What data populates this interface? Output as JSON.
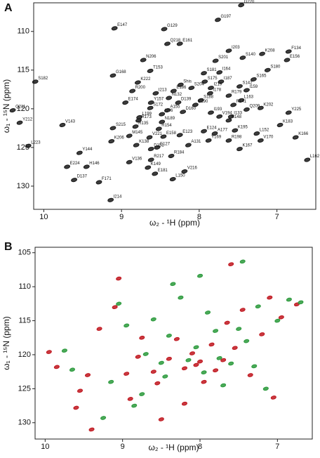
{
  "chart_data": [
    {
      "type": "scatter",
      "title": "A",
      "xlabel": "ω₂ - ¹H (ppm)",
      "ylabel": "ω₁ - ¹⁵N (ppm)",
      "color": "#1a1a1a",
      "xlim": [
        10.13,
        6.5
      ],
      "ylim": [
        106.3,
        133
      ],
      "xticks": [
        10,
        9,
        8,
        7
      ],
      "yticks": [
        110,
        115,
        120,
        125,
        130
      ],
      "point_labels": [
        "G220",
        "G197",
        "E147",
        "G129",
        "Q218",
        "E161",
        "I203",
        "K208",
        "F134",
        "N206",
        "S201",
        "S140",
        "S180",
        "E156",
        "S182",
        "G168",
        "T153",
        "S181",
        "I164",
        "S175",
        "I187",
        "S165",
        "K222",
        "Shis",
        "E186",
        "S204",
        "I219",
        "S142",
        "R200",
        "I213",
        "I178",
        "R179",
        "I159",
        "N132",
        "E174",
        "Y157",
        "D139",
        "S188",
        "L163",
        "Q211",
        "Y212",
        "S172",
        "A155",
        "D160",
        "E190",
        "R141",
        "Q209",
        "K202",
        "Y225",
        "I196",
        "I193",
        "L199",
        "R173",
        "N189",
        "V194",
        "I133",
        "V143",
        "K148",
        "K183",
        "S215",
        "R135",
        "R154",
        "E124",
        "A177",
        "K195",
        "L152",
        "M145",
        "V221",
        "E158",
        "E123",
        "Y169",
        "R198",
        "V170",
        "K166",
        "L223",
        "K206",
        "K138",
        "E127",
        "A131",
        "D151",
        "K167",
        "Y144",
        "R184",
        "V136",
        "R217",
        "L162",
        "E224",
        "H146",
        "K149",
        "V216",
        "E181",
        "L150",
        "D137",
        "F171",
        "I214"
      ],
      "x": [
        7.46,
        7.76,
        9.09,
        8.45,
        8.41,
        8.25,
        7.62,
        7.19,
        6.85,
        8.72,
        7.79,
        7.44,
        7.12,
        6.87,
        10.11,
        9.11,
        8.63,
        7.94,
        7.74,
        7.93,
        7.72,
        7.3,
        8.79,
        8.24,
        8.33,
        8.1,
        7.85,
        7.48,
        8.86,
        8.56,
        7.86,
        7.62,
        7.39,
        8.39,
        8.95,
        8.62,
        8.27,
        7.98,
        7.46,
        10.4,
        10.31,
        8.63,
        8.41,
        8.21,
        8.05,
        7.56,
        7.39,
        7.21,
        6.85,
        8.48,
        7.85,
        8.77,
        8.78,
        8.48,
        7.74,
        7.59,
        9.76,
        7.62,
        6.96,
        9.11,
        8.82,
        8.52,
        7.94,
        7.8,
        7.54,
        7.26,
        8.9,
        8.64,
        8.46,
        8.25,
        7.88,
        7.62,
        7.21,
        6.76,
        10.2,
        9.13,
        8.81,
        8.54,
        8.14,
        8.62,
        7.48,
        9.54,
        8.36,
        8.9,
        8.62,
        6.61,
        9.7,
        9.45,
        8.66,
        8.19,
        8.57,
        8.34,
        9.61,
        9.29,
        9.14
      ],
      "values": [
        106.6,
        108.5,
        109.6,
        109.7,
        111.6,
        111.6,
        112.5,
        112.9,
        112.6,
        113.7,
        113.8,
        113.4,
        115.0,
        113.7,
        116.5,
        115.7,
        115.1,
        115.4,
        115.3,
        116.5,
        116.5,
        116.2,
        116.6,
        116.9,
        117.7,
        117.3,
        117.3,
        117.1,
        117.7,
        118.0,
        118.0,
        118.3,
        117.6,
        118.6,
        119.2,
        119.2,
        119.2,
        118.9,
        118.9,
        120.2,
        121.8,
        119.9,
        120.2,
        120.4,
        119.5,
        119.5,
        120.1,
        119.9,
        120.5,
        120.7,
        120.5,
        121.1,
        121.5,
        121.7,
        121.0,
        121.0,
        122.1,
        121.5,
        122.1,
        122.5,
        122.3,
        122.6,
        122.9,
        123.2,
        122.8,
        123.2,
        123.5,
        123.7,
        123.6,
        123.4,
        124.1,
        124.1,
        124.1,
        123.7,
        124.8,
        124.2,
        124.7,
        125.0,
        124.7,
        125.2,
        125.2,
        125.7,
        126.1,
        126.9,
        126.6,
        126.6,
        127.5,
        127.5,
        127.6,
        128.1,
        128.4,
        129.1,
        129.2,
        129.5,
        131.8
      ]
    },
    {
      "type": "scatter",
      "title": "B",
      "xlabel": "ω₂ - ¹H (ppm)",
      "ylabel": "ω₁ - ¹⁵N (ppm)",
      "xlim": [
        10.13,
        6.55
      ],
      "ylim": [
        104.2,
        132.4
      ],
      "xticks": [
        10,
        9,
        8,
        7
      ],
      "yticks": [
        105,
        110,
        115,
        120,
        125,
        130
      ],
      "series": [
        {
          "color": "#c0161e",
          "x": [
            9.95,
            9.85,
            9.55,
            9.45,
            9.3,
            9.1,
            9.05,
            8.95,
            8.9,
            8.8,
            8.75,
            8.6,
            8.55,
            8.5,
            8.4,
            8.3,
            8.2,
            8.1,
            8.05,
            8.0,
            7.95,
            7.85,
            7.8,
            7.7,
            7.65,
            7.55,
            7.45,
            7.35,
            7.2,
            7.1,
            7.05,
            6.95,
            6.75,
            9.4,
            9.6,
            8.2,
            7.6
          ],
          "values": [
            119.6,
            121.8,
            125.3,
            123,
            116.2,
            113,
            108.8,
            122.8,
            126.5,
            120.3,
            117.5,
            122.5,
            124.2,
            129.5,
            120.6,
            117.7,
            122,
            119.8,
            121.5,
            121,
            124,
            118.5,
            122.3,
            120.8,
            115.3,
            119,
            113.4,
            123,
            117,
            111.6,
            126.3,
            114.5,
            112.6,
            131,
            127.8,
            127.2,
            106.7
          ]
        },
        {
          "color": "#2b9a3c",
          "x": [
            9.75,
            9.65,
            9.15,
            9.05,
            8.95,
            8.85,
            8.7,
            8.6,
            8.5,
            8.4,
            8.35,
            8.25,
            8.15,
            8.05,
            7.95,
            7.9,
            7.8,
            7.75,
            7.7,
            7.6,
            7.5,
            7.4,
            7.3,
            7.25,
            7.15,
            7.0,
            6.85,
            6.7,
            7.45,
            9.25,
            8.0,
            8.75,
            8.45
          ],
          "values": [
            119.4,
            122.2,
            124,
            112.5,
            115.7,
            127.5,
            119.9,
            114.8,
            121.2,
            117.2,
            109.6,
            111.6,
            120.8,
            118.9,
            122.6,
            113.8,
            116.5,
            120.5,
            124.5,
            121.3,
            116.2,
            118,
            121.7,
            112.9,
            125,
            115,
            111.9,
            112.3,
            106.3,
            129.3,
            108.4,
            125.8,
            123.2
          ]
        }
      ]
    }
  ]
}
